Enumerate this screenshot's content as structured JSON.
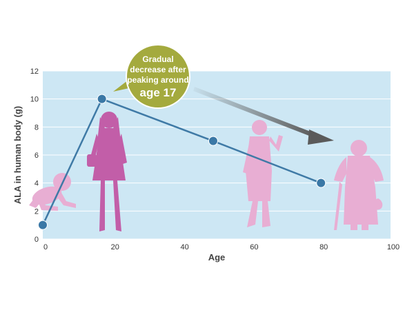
{
  "chart_data": {
    "type": "line",
    "title": "",
    "xlabel": "Age",
    "ylabel": "ALA in human body (g)",
    "xlim": [
      0,
      100
    ],
    "ylim": [
      0,
      12
    ],
    "x_ticks": [
      0,
      20,
      40,
      60,
      80,
      100
    ],
    "y_ticks": [
      0,
      2,
      4,
      6,
      8,
      10,
      12
    ],
    "grid": true,
    "series": [
      {
        "x": [
          0,
          17,
          49,
          80
        ],
        "y": [
          1,
          10,
          7,
          4
        ]
      }
    ],
    "annotations": [
      {
        "lines": [
          "Gradual",
          "decrease after",
          "peaking around",
          "age 17"
        ]
      }
    ]
  },
  "colors": {
    "plot_background": "#cde7f4",
    "gridline": "#ffffff",
    "line": "#3f7aa6",
    "marker": "#3a78a6",
    "bubble": "#a4aa3e",
    "arrow": "#5a5a5a",
    "figure_child": "#c25ea8",
    "figure_light": "#e8aed3"
  },
  "figures": [
    "crawling-baby-icon",
    "girl-icon",
    "woman-waving-icon",
    "elderly-woman-cane-icon"
  ]
}
